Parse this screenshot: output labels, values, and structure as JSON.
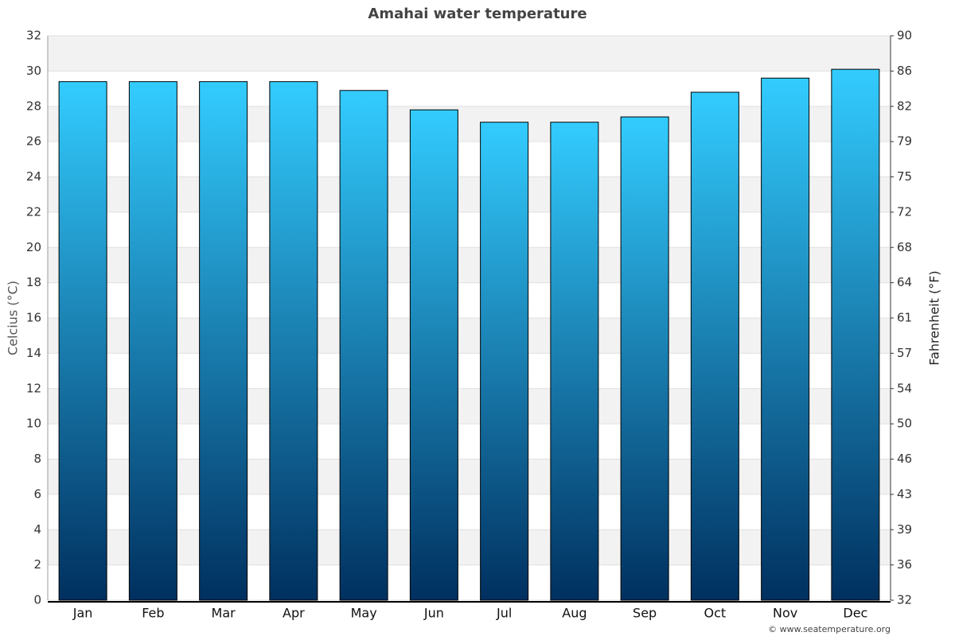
{
  "chart_data": {
    "type": "bar",
    "title": "Amahai water temperature",
    "y_label": "Celcius (°C)",
    "y2_label": "Fahrenheit (°F)",
    "categories": [
      "Jan",
      "Feb",
      "Mar",
      "Apr",
      "May",
      "Jun",
      "Jul",
      "Aug",
      "Sep",
      "Oct",
      "Nov",
      "Dec"
    ],
    "values": [
      29.4,
      29.4,
      29.4,
      29.4,
      28.9,
      27.8,
      27.1,
      27.1,
      27.4,
      28.8,
      29.6,
      30.1
    ],
    "gradient": [
      "#33ccff",
      "#00305f"
    ],
    "ylim": [
      0,
      32
    ],
    "yticks": [
      0,
      2,
      4,
      6,
      8,
      10,
      12,
      14,
      16,
      18,
      20,
      22,
      24,
      26,
      28,
      30,
      32
    ],
    "y2lim": [
      32,
      89.6
    ],
    "y2ticks": [
      32,
      {
        "value": 35.6,
        "label": "36"
      },
      {
        "value": 39.2,
        "label": "39"
      },
      {
        "value": 42.8,
        "label": "43"
      },
      {
        "value": 46.4,
        "label": "46"
      },
      50,
      {
        "value": 53.6,
        "label": "54"
      },
      {
        "value": 57.2,
        "label": "57"
      },
      {
        "value": 60.8,
        "label": "61"
      },
      {
        "value": 64.4,
        "label": "64"
      },
      68,
      {
        "value": 71.6,
        "label": "72"
      },
      {
        "value": 75.2,
        "label": "75"
      },
      {
        "value": 78.8,
        "label": "79"
      },
      {
        "value": 82.4,
        "label": "82"
      },
      86,
      {
        "value": 89.6,
        "label": "90"
      }
    ],
    "grid": true,
    "band_color": "#f2f2f2",
    "credit": "© www.seatemperature.org"
  }
}
